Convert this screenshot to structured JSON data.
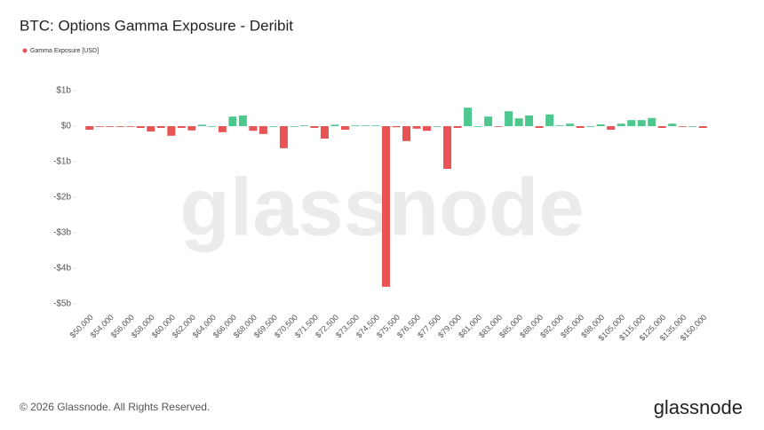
{
  "chart_data": {
    "type": "bar",
    "title": "BTC: Options Gamma Exposure - Deribit",
    "legend": "Gamma Exposure [USD]",
    "legend_color": "#e85454",
    "positive_color": "#4cc78e",
    "negative_color": "#e85454",
    "watermark": "glassnode",
    "footer": "© 2026 Glassnode. All Rights Reserved.",
    "logo": "glassnode",
    "categories": [
      "$50,000",
      null,
      "$54,000",
      null,
      "$56,000",
      null,
      "$58,000",
      null,
      "$60,000",
      null,
      "$62,000",
      null,
      "$64,000",
      null,
      "$66,000",
      null,
      "$68,000",
      null,
      "$69,500",
      null,
      "$70,500",
      null,
      "$71,500",
      null,
      "$72,500",
      null,
      "$73,500",
      null,
      "$74,500",
      null,
      "$75,500",
      null,
      "$76,500",
      null,
      "$77,500",
      null,
      "$79,000",
      null,
      "$81,000",
      null,
      "$83,000",
      null,
      "$85,000",
      null,
      "$88,000",
      null,
      "$92,000",
      null,
      "$95,000",
      null,
      "$98,000",
      null,
      "$105,000",
      null,
      "$115,000",
      null,
      "$125,000",
      null,
      "$135,000",
      null,
      "$150,000"
    ],
    "values": [
      -0.1,
      -0.02,
      -0.01,
      -0.01,
      -0.02,
      -0.05,
      -0.15,
      -0.05,
      -0.27,
      -0.05,
      -0.12,
      0.04,
      0,
      -0.17,
      0.27,
      0.3,
      -0.13,
      -0.22,
      0,
      -0.62,
      0,
      0.02,
      -0.05,
      -0.35,
      0.04,
      -0.1,
      0.02,
      0.02,
      0.02,
      -4.52,
      -0.03,
      -0.42,
      -0.07,
      -0.13,
      0,
      -1.2,
      -0.05,
      0.52,
      0,
      0.27,
      -0.02,
      0.42,
      0.22,
      0.3,
      -0.05,
      0.33,
      0.02,
      0.07,
      -0.05,
      0,
      0.05,
      -0.1,
      0.07,
      0.17,
      0.17,
      0.23,
      -0.05,
      0.07,
      -0.02,
      0,
      -0.05
    ],
    "ylim": [
      -5,
      1
    ],
    "yticks": [
      {
        "value": 1,
        "label": "$1b"
      },
      {
        "value": 0,
        "label": "$0"
      },
      {
        "value": -1,
        "label": "-$1b"
      },
      {
        "value": -2,
        "label": "-$2b"
      },
      {
        "value": -3,
        "label": "-$3b"
      },
      {
        "value": -4,
        "label": "-$4b"
      },
      {
        "value": -5,
        "label": "-$5b"
      }
    ]
  }
}
